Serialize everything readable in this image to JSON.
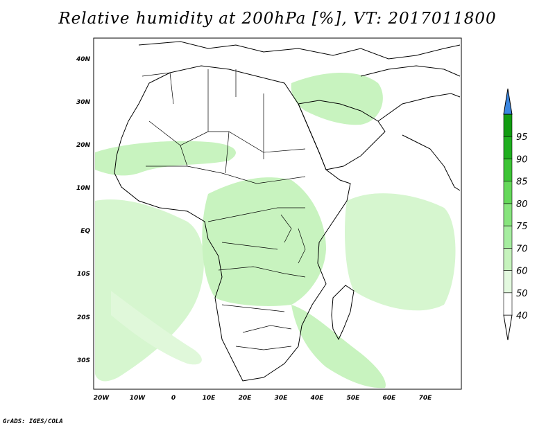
{
  "title": "Relative humidity at 200hPa [%], VT: 2017011800",
  "credit": "GrADS: IGES/COLA",
  "lat_ticks": [
    "40N",
    "30N",
    "20N",
    "10N",
    "EQ",
    "10S",
    "20S",
    "30S"
  ],
  "lon_ticks": [
    "20W",
    "10W",
    "0",
    "10E",
    "20E",
    "30E",
    "40E",
    "50E",
    "60E",
    "70E"
  ],
  "colorbar": {
    "levels": [
      "40",
      "50",
      "60",
      "70",
      "75",
      "80",
      "85",
      "90",
      "95"
    ],
    "colors": [
      "#ffffff",
      "#e3f9df",
      "#c6f3bd",
      "#a6eda0",
      "#87e47d",
      "#65d85a",
      "#3cc435",
      "#1faf1f",
      "#109c10"
    ],
    "overflow_color": "#3a86e0"
  },
  "map": {
    "domain": {
      "lon": [
        -22,
        80
      ],
      "lat": [
        -37,
        45
      ]
    },
    "field": "Relative humidity",
    "level": "200hPa",
    "units": "%",
    "valid_time": "2017011800"
  }
}
